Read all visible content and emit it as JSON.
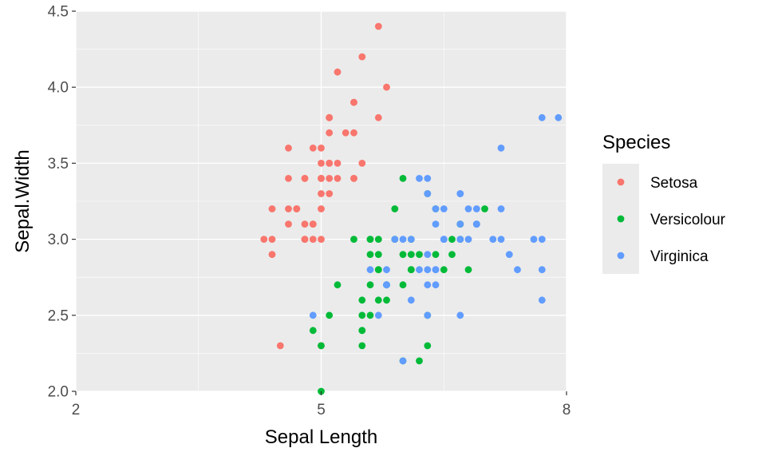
{
  "chart_data": {
    "type": "scatter",
    "xlabel": "Sepal Length",
    "ylabel": "Sepal.Width",
    "xlim": [
      2,
      8
    ],
    "ylim": [
      2.0,
      4.5
    ],
    "x_ticks": [
      2,
      5,
      8
    ],
    "x_tick_labels": [
      "2",
      "5",
      "8"
    ],
    "y_ticks": [
      2.0,
      2.5,
      3.0,
      3.5,
      4.0,
      4.5
    ],
    "y_tick_labels": [
      "2.0",
      "2.5",
      "3.0",
      "3.5",
      "4.0",
      "4.5"
    ],
    "grid": true,
    "legend": {
      "title": "Species",
      "position": "right"
    },
    "series": [
      {
        "name": "Setosa",
        "color": "#F8766D",
        "points": [
          [
            4.3,
            3.0
          ],
          [
            4.4,
            2.9
          ],
          [
            4.4,
            3.0
          ],
          [
            4.4,
            3.2
          ],
          [
            4.5,
            2.3
          ],
          [
            4.6,
            3.1
          ],
          [
            4.6,
            3.4
          ],
          [
            4.6,
            3.6
          ],
          [
            4.6,
            3.2
          ],
          [
            4.7,
            3.2
          ],
          [
            4.7,
            3.2
          ],
          [
            4.8,
            3.4
          ],
          [
            4.8,
            3.0
          ],
          [
            4.8,
            3.4
          ],
          [
            4.8,
            3.1
          ],
          [
            4.8,
            3.0
          ],
          [
            4.9,
            3.0
          ],
          [
            4.9,
            3.1
          ],
          [
            4.9,
            3.6
          ],
          [
            5.0,
            3.6
          ],
          [
            5.0,
            3.4
          ],
          [
            5.0,
            3.0
          ],
          [
            5.0,
            3.4
          ],
          [
            5.0,
            3.2
          ],
          [
            5.0,
            3.5
          ],
          [
            5.0,
            3.3
          ],
          [
            5.1,
            3.5
          ],
          [
            5.1,
            3.5
          ],
          [
            5.1,
            3.8
          ],
          [
            5.1,
            3.7
          ],
          [
            5.1,
            3.3
          ],
          [
            5.1,
            3.4
          ],
          [
            5.1,
            3.8
          ],
          [
            5.1,
            3.8
          ],
          [
            5.2,
            3.5
          ],
          [
            5.2,
            3.4
          ],
          [
            5.2,
            4.1
          ],
          [
            5.3,
            3.7
          ],
          [
            5.4,
            3.9
          ],
          [
            5.4,
            3.7
          ],
          [
            5.4,
            3.9
          ],
          [
            5.4,
            3.4
          ],
          [
            5.4,
            3.4
          ],
          [
            5.5,
            4.2
          ],
          [
            5.5,
            3.5
          ],
          [
            5.7,
            4.4
          ],
          [
            5.7,
            3.8
          ],
          [
            5.8,
            4.0
          ],
          [
            5.0,
            2.3
          ],
          [
            4.9,
            3.1
          ]
        ]
      },
      {
        "name": "Versicolour",
        "color": "#00BA38",
        "points": [
          [
            4.9,
            2.4
          ],
          [
            5.0,
            2.0
          ],
          [
            5.0,
            2.3
          ],
          [
            5.1,
            2.5
          ],
          [
            5.2,
            2.7
          ],
          [
            5.5,
            2.3
          ],
          [
            5.5,
            2.4
          ],
          [
            5.5,
            2.4
          ],
          [
            5.5,
            2.5
          ],
          [
            5.5,
            2.6
          ],
          [
            5.6,
            2.9
          ],
          [
            5.6,
            3.0
          ],
          [
            5.6,
            2.5
          ],
          [
            5.6,
            2.7
          ],
          [
            5.6,
            3.0
          ],
          [
            5.7,
            2.8
          ],
          [
            5.7,
            2.6
          ],
          [
            5.7,
            3.0
          ],
          [
            5.7,
            2.9
          ],
          [
            5.7,
            2.8
          ],
          [
            5.8,
            2.7
          ],
          [
            5.8,
            2.6
          ],
          [
            5.8,
            2.7
          ],
          [
            5.9,
            3.0
          ],
          [
            5.9,
            3.2
          ],
          [
            6.0,
            2.2
          ],
          [
            6.0,
            2.9
          ],
          [
            6.0,
            2.7
          ],
          [
            6.0,
            3.4
          ],
          [
            6.1,
            2.9
          ],
          [
            6.1,
            2.8
          ],
          [
            6.1,
            3.0
          ],
          [
            6.1,
            2.8
          ],
          [
            6.2,
            2.2
          ],
          [
            6.2,
            2.9
          ],
          [
            6.3,
            2.3
          ],
          [
            6.3,
            2.5
          ],
          [
            6.3,
            3.3
          ],
          [
            6.4,
            3.2
          ],
          [
            6.4,
            2.9
          ],
          [
            6.5,
            2.8
          ],
          [
            6.6,
            2.9
          ],
          [
            6.6,
            3.0
          ],
          [
            6.7,
            3.1
          ],
          [
            6.7,
            3.0
          ],
          [
            6.7,
            3.1
          ],
          [
            6.8,
            2.8
          ],
          [
            6.9,
            3.1
          ],
          [
            7.0,
            3.2
          ],
          [
            5.4,
            3.0
          ]
        ]
      },
      {
        "name": "Virginica",
        "color": "#619CFF",
        "points": [
          [
            4.9,
            2.5
          ],
          [
            5.6,
            2.8
          ],
          [
            5.7,
            2.5
          ],
          [
            5.8,
            2.7
          ],
          [
            5.8,
            2.8
          ],
          [
            5.8,
            2.7
          ],
          [
            6.0,
            2.2
          ],
          [
            6.0,
            3.0
          ],
          [
            6.1,
            3.0
          ],
          [
            6.1,
            2.6
          ],
          [
            6.2,
            3.4
          ],
          [
            6.2,
            2.8
          ],
          [
            6.3,
            3.3
          ],
          [
            6.3,
            2.9
          ],
          [
            6.3,
            2.5
          ],
          [
            6.3,
            2.8
          ],
          [
            6.3,
            3.4
          ],
          [
            6.3,
            2.7
          ],
          [
            6.4,
            2.8
          ],
          [
            6.4,
            3.2
          ],
          [
            6.4,
            2.7
          ],
          [
            6.4,
            2.8
          ],
          [
            6.4,
            3.1
          ],
          [
            6.5,
            3.0
          ],
          [
            6.5,
            3.0
          ],
          [
            6.5,
            3.2
          ],
          [
            6.5,
            3.0
          ],
          [
            6.7,
            2.5
          ],
          [
            6.7,
            3.3
          ],
          [
            6.7,
            3.1
          ],
          [
            6.7,
            3.0
          ],
          [
            6.7,
            3.3
          ],
          [
            6.8,
            3.0
          ],
          [
            6.8,
            3.2
          ],
          [
            6.9,
            3.2
          ],
          [
            6.9,
            3.1
          ],
          [
            6.9,
            3.1
          ],
          [
            7.1,
            3.0
          ],
          [
            7.2,
            3.6
          ],
          [
            7.2,
            3.2
          ],
          [
            7.2,
            3.0
          ],
          [
            7.3,
            2.9
          ],
          [
            7.4,
            2.8
          ],
          [
            7.6,
            3.0
          ],
          [
            7.7,
            3.8
          ],
          [
            7.7,
            2.6
          ],
          [
            7.7,
            2.8
          ],
          [
            7.7,
            3.0
          ],
          [
            7.9,
            3.8
          ],
          [
            5.9,
            3.0
          ]
        ]
      }
    ]
  }
}
